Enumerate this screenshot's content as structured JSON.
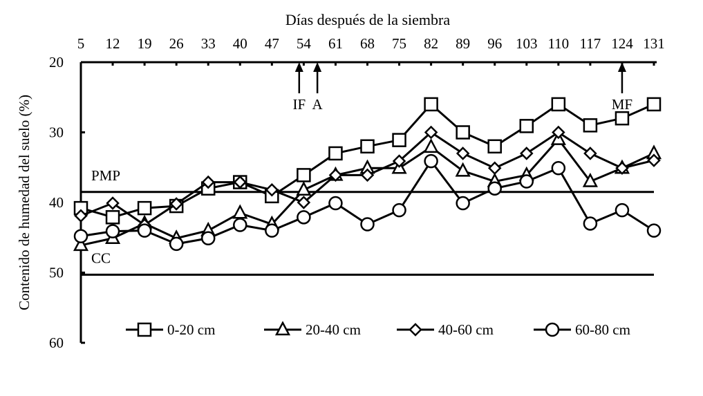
{
  "chart_data": {
    "type": "line",
    "title": "",
    "xlabel": "Días después de la siembra",
    "ylabel": "Contenido de humedad del suelo (%)",
    "x": [
      5,
      12,
      19,
      26,
      33,
      40,
      47,
      54,
      61,
      68,
      75,
      82,
      89,
      96,
      103,
      110,
      117,
      124,
      131
    ],
    "x_tick_labels": [
      "5",
      "12",
      "19",
      "26",
      "33",
      "40",
      "47",
      "54",
      "61",
      "68",
      "75",
      "82",
      "89",
      "96",
      "103",
      "110",
      "117",
      "124",
      "131"
    ],
    "x_axis_position": "top",
    "y_tick_labels": [
      "20",
      "30",
      "40",
      "50",
      "60"
    ],
    "y_ticks": [
      20,
      30,
      40,
      50,
      60
    ],
    "ylim": [
      20,
      60
    ],
    "y_inverted": true,
    "grid": false,
    "legend_position": "bottom",
    "series": [
      {
        "name": "0-20 cm",
        "marker": "square",
        "values": [
          40.8,
          42.1,
          40.8,
          40.5,
          38.0,
          37.1,
          39.1,
          36.1,
          33.0,
          32.0,
          31.1,
          26.0,
          30.0,
          32.0,
          29.1,
          26.0,
          29.0,
          28.0,
          26.0
        ]
      },
      {
        "name": "20-40 cm",
        "marker": "triangle",
        "values": [
          46.1,
          45.1,
          43.0,
          45.1,
          44.0,
          41.5,
          43.1,
          38.2,
          36.1,
          35.1,
          35.1,
          32.1,
          35.5,
          37.0,
          36.1,
          31.0,
          37.0,
          35.1,
          33.0
        ]
      },
      {
        "name": "40-60 cm",
        "marker": "diamond",
        "values": [
          41.9,
          40.1,
          43.2,
          40.2,
          37.1,
          37.1,
          38.2,
          40.0,
          36.1,
          36.1,
          34.1,
          30.0,
          33.0,
          35.1,
          33.0,
          30.0,
          33.0,
          35.1,
          34.0
        ]
      },
      {
        "name": "60-80 cm",
        "marker": "circle",
        "values": [
          44.8,
          44.1,
          44.0,
          45.9,
          45.1,
          43.2,
          44.0,
          42.1,
          40.1,
          43.1,
          41.1,
          34.1,
          40.1,
          38.0,
          37.0,
          35.1,
          43.0,
          41.1,
          44.0
        ]
      }
    ],
    "reference_lines": [
      {
        "label": "PMP",
        "y": 38.5
      },
      {
        "label": "CC",
        "y": 50.3
      }
    ],
    "annotations": [
      {
        "label": "IF",
        "x": 53
      },
      {
        "label": "A",
        "x": 57
      },
      {
        "label": "MF",
        "x": 124
      }
    ]
  }
}
